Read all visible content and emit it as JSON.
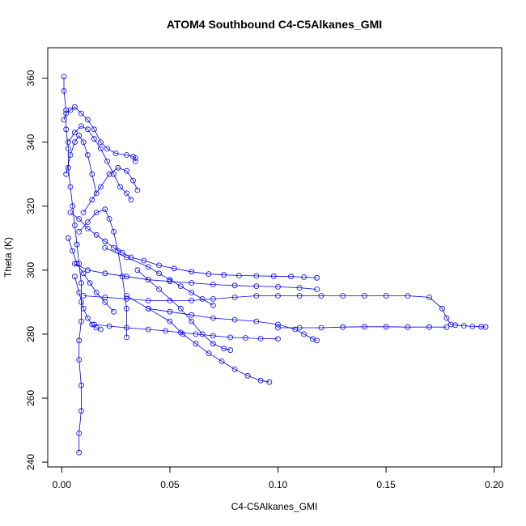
{
  "chart_data": {
    "type": "scatter",
    "title": "ATOM4 Southbound C4-C5Alkanes_GMI",
    "xlabel": "C4-C5Alkanes_GMI",
    "ylabel": "Theta (K)",
    "xlim": [
      -0.0065,
      0.2035
    ],
    "ylim": [
      238.5,
      369.5
    ],
    "xticks": [
      0.0,
      0.05,
      0.1,
      0.15,
      0.2
    ],
    "xtick_labels": [
      "0.00",
      "0.05",
      "0.10",
      "0.15",
      "0.20"
    ],
    "yticks": [
      240,
      260,
      280,
      300,
      320,
      340,
      360
    ],
    "ytick_labels": [
      "240",
      "260",
      "280",
      "300",
      "320",
      "340",
      "360"
    ],
    "grid": false,
    "marker": "open-circle",
    "connected": true,
    "color": "#0000ff",
    "series": [
      {
        "x": [
          0.001,
          0.001,
          0.002,
          0.002,
          0.003,
          0.003,
          0.004,
          0.005,
          0.006,
          0.007,
          0.008,
          0.009,
          0.009,
          0.009,
          0.008,
          0.008,
          0.009,
          0.009,
          0.008,
          0.008
        ],
        "y": [
          360.5,
          356,
          350,
          344,
          338,
          332,
          326,
          320,
          314,
          308,
          302,
          296,
          290,
          284,
          278,
          272,
          264,
          256,
          249,
          243
        ]
      },
      {
        "x": [
          0.001,
          0.002,
          0.004,
          0.006,
          0.009,
          0.012,
          0.015,
          0.018,
          0.021,
          0.025,
          0.03,
          0.033,
          0.034,
          0.034
        ],
        "y": [
          347,
          349,
          350,
          351,
          349,
          347,
          344,
          340,
          338,
          336.5,
          336,
          335.5,
          335,
          334
        ]
      },
      {
        "x": [
          0.003,
          0.006,
          0.009,
          0.012,
          0.015,
          0.018,
          0.021,
          0.024,
          0.027,
          0.03,
          0.032
        ],
        "y": [
          340,
          343,
          345,
          344,
          341,
          338,
          334,
          330,
          326,
          324,
          322
        ]
      },
      {
        "x": [
          0.004,
          0.008,
          0.012,
          0.016,
          0.02,
          0.024,
          0.028,
          0.032,
          0.038,
          0.045,
          0.052,
          0.06,
          0.068,
          0.075,
          0.082,
          0.09,
          0.098,
          0.106,
          0.112,
          0.118
        ],
        "y": [
          318,
          316,
          313,
          311,
          309,
          307,
          305.5,
          304,
          303,
          301.5,
          300.5,
          299.5,
          298.8,
          298.5,
          298.3,
          298.2,
          298.1,
          298,
          297.8,
          297.6
        ]
      },
      {
        "x": [
          0.006,
          0.012,
          0.02,
          0.03,
          0.04,
          0.05,
          0.06,
          0.07,
          0.08,
          0.09,
          0.1,
          0.11,
          0.118
        ],
        "y": [
          302,
          300,
          299,
          298,
          297,
          296.5,
          296,
          295.5,
          295.2,
          295,
          294.8,
          294.5,
          294
        ]
      },
      {
        "x": [
          0.01,
          0.02,
          0.03,
          0.04,
          0.05,
          0.06,
          0.07,
          0.08,
          0.09,
          0.1,
          0.11,
          0.12,
          0.13,
          0.14,
          0.15,
          0.16,
          0.17,
          0.176,
          0.178,
          0.18,
          0.182,
          0.186,
          0.19,
          0.194,
          0.196
        ],
        "y": [
          292,
          291.5,
          291,
          290.5,
          290.5,
          290.5,
          291,
          291.5,
          292,
          292,
          292,
          292,
          292,
          292,
          292,
          292,
          291.5,
          288,
          285,
          283,
          282.8,
          282.6,
          282.4,
          282.3,
          282.2
        ]
      },
      {
        "x": [
          0.1,
          0.11,
          0.12,
          0.13,
          0.14,
          0.15,
          0.16,
          0.17,
          0.178
        ],
        "y": [
          282,
          282,
          282,
          282.2,
          282.3,
          282.3,
          282.2,
          282.2,
          282.2
        ]
      },
      {
        "x": [
          0.015,
          0.022,
          0.03,
          0.04,
          0.048,
          0.055,
          0.062,
          0.07,
          0.078,
          0.085,
          0.092,
          0.1
        ],
        "y": [
          283,
          282.5,
          282,
          281.5,
          281,
          280.5,
          280,
          279.5,
          279,
          278.8,
          278.6,
          278.5
        ]
      },
      {
        "x": [
          0.03,
          0.04,
          0.05,
          0.056,
          0.062,
          0.068,
          0.074,
          0.08,
          0.086,
          0.092,
          0.096
        ],
        "y": [
          292,
          288,
          284,
          280,
          277,
          274,
          271.5,
          269,
          267,
          265.5,
          265
        ]
      },
      {
        "x": [
          0.035,
          0.045,
          0.055,
          0.06,
          0.065,
          0.07,
          0.075,
          0.078
        ],
        "y": [
          300,
          294,
          288,
          284,
          280,
          277,
          275.5,
          275
        ]
      },
      {
        "x": [
          0.04,
          0.05,
          0.06,
          0.07,
          0.08,
          0.09,
          0.1,
          0.108,
          0.112,
          0.116,
          0.118
        ],
        "y": [
          288,
          287,
          286,
          285,
          284.5,
          284,
          283,
          281.5,
          280,
          278.5,
          278
        ]
      },
      {
        "x": [
          0.01,
          0.014,
          0.018,
          0.022,
          0.026,
          0.03,
          0.033,
          0.035
        ],
        "y": [
          318,
          322,
          326,
          330,
          332,
          331,
          328,
          325
        ]
      },
      {
        "x": [
          0.008,
          0.012,
          0.016,
          0.02,
          0.022,
          0.024,
          0.026,
          0.028,
          0.03,
          0.03
        ],
        "y": [
          312,
          315,
          318,
          319,
          316,
          312,
          306,
          298,
          288,
          279
        ]
      },
      {
        "x": [
          0.02,
          0.03,
          0.04,
          0.045,
          0.05,
          0.055,
          0.06,
          0.065,
          0.07
        ],
        "y": [
          307,
          304,
          301,
          299,
          297,
          295,
          293,
          291,
          289
        ]
      },
      {
        "x": [
          0.006,
          0.008,
          0.01,
          0.012,
          0.014,
          0.016,
          0.018
        ],
        "y": [
          298,
          293,
          288,
          285,
          283,
          282,
          281.5
        ]
      },
      {
        "x": [
          0.002,
          0.004,
          0.006,
          0.008,
          0.01,
          0.012,
          0.014,
          0.016
        ],
        "y": [
          330,
          336,
          340,
          342,
          340,
          336,
          330,
          324
        ]
      },
      {
        "x": [
          0.003,
          0.005,
          0.007,
          0.01,
          0.013,
          0.016,
          0.02,
          0.024
        ],
        "y": [
          310,
          306,
          302,
          299,
          296,
          293,
          290,
          287
        ]
      }
    ]
  }
}
